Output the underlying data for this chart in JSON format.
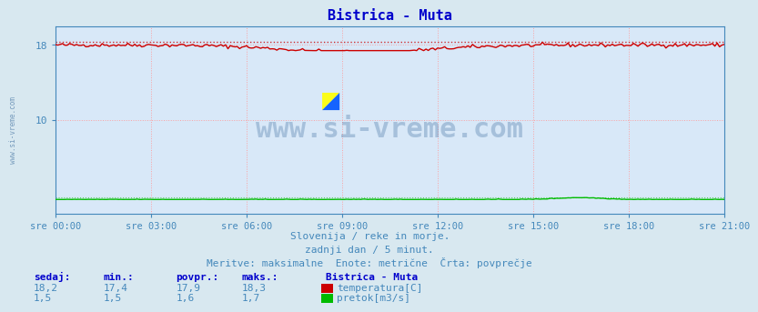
{
  "title": "Bistrica - Muta",
  "bg_color": "#d8e8f0",
  "plot_bg_color": "#d8e8f8",
  "grid_color": "#ff9999",
  "title_color": "#0000cc",
  "axis_color": "#4488bb",
  "text_color": "#4488bb",
  "xtick_labels": [
    "sre 00:00",
    "sre 03:00",
    "sre 06:00",
    "sre 09:00",
    "sre 12:00",
    "sre 15:00",
    "sre 18:00",
    "sre 21:00"
  ],
  "ylim": [
    0,
    20
  ],
  "xlim_max": 287,
  "n_points": 288,
  "temp_min": 17.4,
  "temp_max": 18.3,
  "flow_min": 1.5,
  "flow_max": 1.7,
  "temp_color": "#cc0000",
  "flow_color": "#00bb00",
  "watermark": "www.si-vreme.com",
  "watermark_color": "#336699",
  "subtitle1": "Slovenija / reke in morje.",
  "subtitle2": "zadnji dan / 5 minut.",
  "subtitle3": "Meritve: maksimalne  Enote: metrične  Črta: povprečje",
  "footer_headers": [
    "sedaj:",
    "min.:",
    "povpr.:",
    "maks.:"
  ],
  "footer_vals_temp": [
    "18,2",
    "17,4",
    "17,9",
    "18,3"
  ],
  "footer_vals_flow": [
    "1,5",
    "1,5",
    "1,6",
    "1,7"
  ],
  "legend_title": "Bistrica - Muta",
  "legend_temp": "temperatura[C]",
  "legend_flow": "pretok[m3/s]"
}
